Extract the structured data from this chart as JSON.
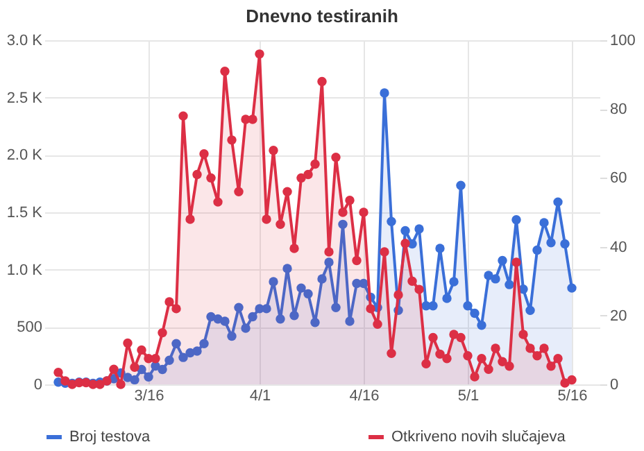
{
  "chart_data": {
    "type": "line",
    "title": "Dnevno testiranih",
    "x": [
      "--03-03",
      "--03-04",
      "--03-05",
      "--03-06",
      "--03-07",
      "--03-08",
      "--03-09",
      "--03-10",
      "--03-11",
      "--03-12",
      "--03-13",
      "--03-14",
      "--03-15",
      "--03-16",
      "--03-17",
      "--03-18",
      "--03-19",
      "--03-20",
      "--03-21",
      "--03-22",
      "--03-23",
      "--03-24",
      "--03-25",
      "--03-26",
      "--03-27",
      "--03-28",
      "--03-29",
      "--03-30",
      "--03-31",
      "--04-01",
      "--04-02",
      "--04-03",
      "--04-04",
      "--04-05",
      "--04-06",
      "--04-07",
      "--04-08",
      "--04-09",
      "--04-10",
      "--04-11",
      "--04-12",
      "--04-13",
      "--04-14",
      "--04-15",
      "--04-16",
      "--04-17",
      "--04-18",
      "--04-19",
      "--04-20",
      "--04-21",
      "--04-22",
      "--04-23",
      "--04-24",
      "--04-25",
      "--04-26",
      "--04-27",
      "--04-28",
      "--04-29",
      "--04-30",
      "--05-01",
      "--05-02",
      "--05-03",
      "--05-04",
      "--05-05",
      "--05-06",
      "--05-07",
      "--05-08",
      "--05-09",
      "--05-10",
      "--05-11",
      "--05-12",
      "--05-13",
      "--05-14",
      "--05-15",
      "--05-16"
    ],
    "series": [
      {
        "name": "Broj testova",
        "color": "#3a6fd8",
        "values": [
          20,
          10,
          10,
          20,
          20,
          10,
          20,
          30,
          50,
          100,
          60,
          40,
          130,
          65,
          160,
          130,
          210,
          355,
          235,
          275,
          290,
          355,
          590,
          570,
          550,
          420,
          670,
          490,
          590,
          660,
          660,
          895,
          570,
          1010,
          600,
          840,
          790,
          540,
          920,
          1065,
          670,
          1395,
          550,
          880,
          880,
          760,
          670,
          2540,
          1420,
          645,
          1340,
          1225,
          1355,
          685,
          685,
          1185,
          750,
          895,
          1735,
          685,
          620,
          515,
          950,
          920,
          1080,
          870,
          1435,
          830,
          645,
          1170,
          1410,
          1235,
          1590,
          1225,
          840
        ]
      },
      {
        "name": "Otkriveno novih slučajeva",
        "color": "#dc2f45",
        "axis": "y2",
        "values": [
          3.5,
          1,
          0,
          0.5,
          0.5,
          0,
          0,
          1,
          4.4,
          0,
          12,
          5,
          10,
          7.5,
          7.5,
          15,
          24,
          22,
          78,
          48,
          61,
          67,
          60,
          53,
          91,
          71,
          56,
          77,
          77,
          96,
          48,
          68,
          46.5,
          56,
          39.5,
          60,
          61,
          64,
          88,
          38.5,
          66,
          50,
          53.5,
          36,
          50,
          22,
          17.5,
          38.5,
          9,
          26,
          41,
          30,
          27.6,
          6,
          13.6,
          8.8,
          7.5,
          14.5,
          13.6,
          8.3,
          2.2,
          7.5,
          4.4,
          10.5,
          6.6,
          5.3,
          35.5,
          14.5,
          10.5,
          8.3,
          10.5,
          5.3,
          7.5,
          0.4,
          1.3
        ]
      }
    ],
    "xlim": [
      "--03-01",
      "--05-20"
    ],
    "xticks": [
      {
        "value": "--03-16",
        "label": "3/16"
      },
      {
        "value": "--04-01",
        "label": "4/1"
      },
      {
        "value": "--04-16",
        "label": "4/16"
      },
      {
        "value": "--05-01",
        "label": "5/1"
      },
      {
        "value": "--05-16",
        "label": "5/16"
      }
    ],
    "ylim": [
      0,
      3000
    ],
    "yticks": [
      0,
      500,
      {
        "value": 1000,
        "label": "1.0 K"
      },
      {
        "value": 1500,
        "label": "1.5 K"
      },
      {
        "value": 2000,
        "label": "2.0 K"
      },
      {
        "value": 2500,
        "label": "2.5 K"
      },
      {
        "value": 3000,
        "label": "3.0 K"
      }
    ],
    "y2lim": [
      0,
      100
    ],
    "y2ticks": [
      0,
      20,
      40,
      60,
      80,
      100
    ],
    "grid": true,
    "legend": "bottom",
    "marker": "circle"
  }
}
